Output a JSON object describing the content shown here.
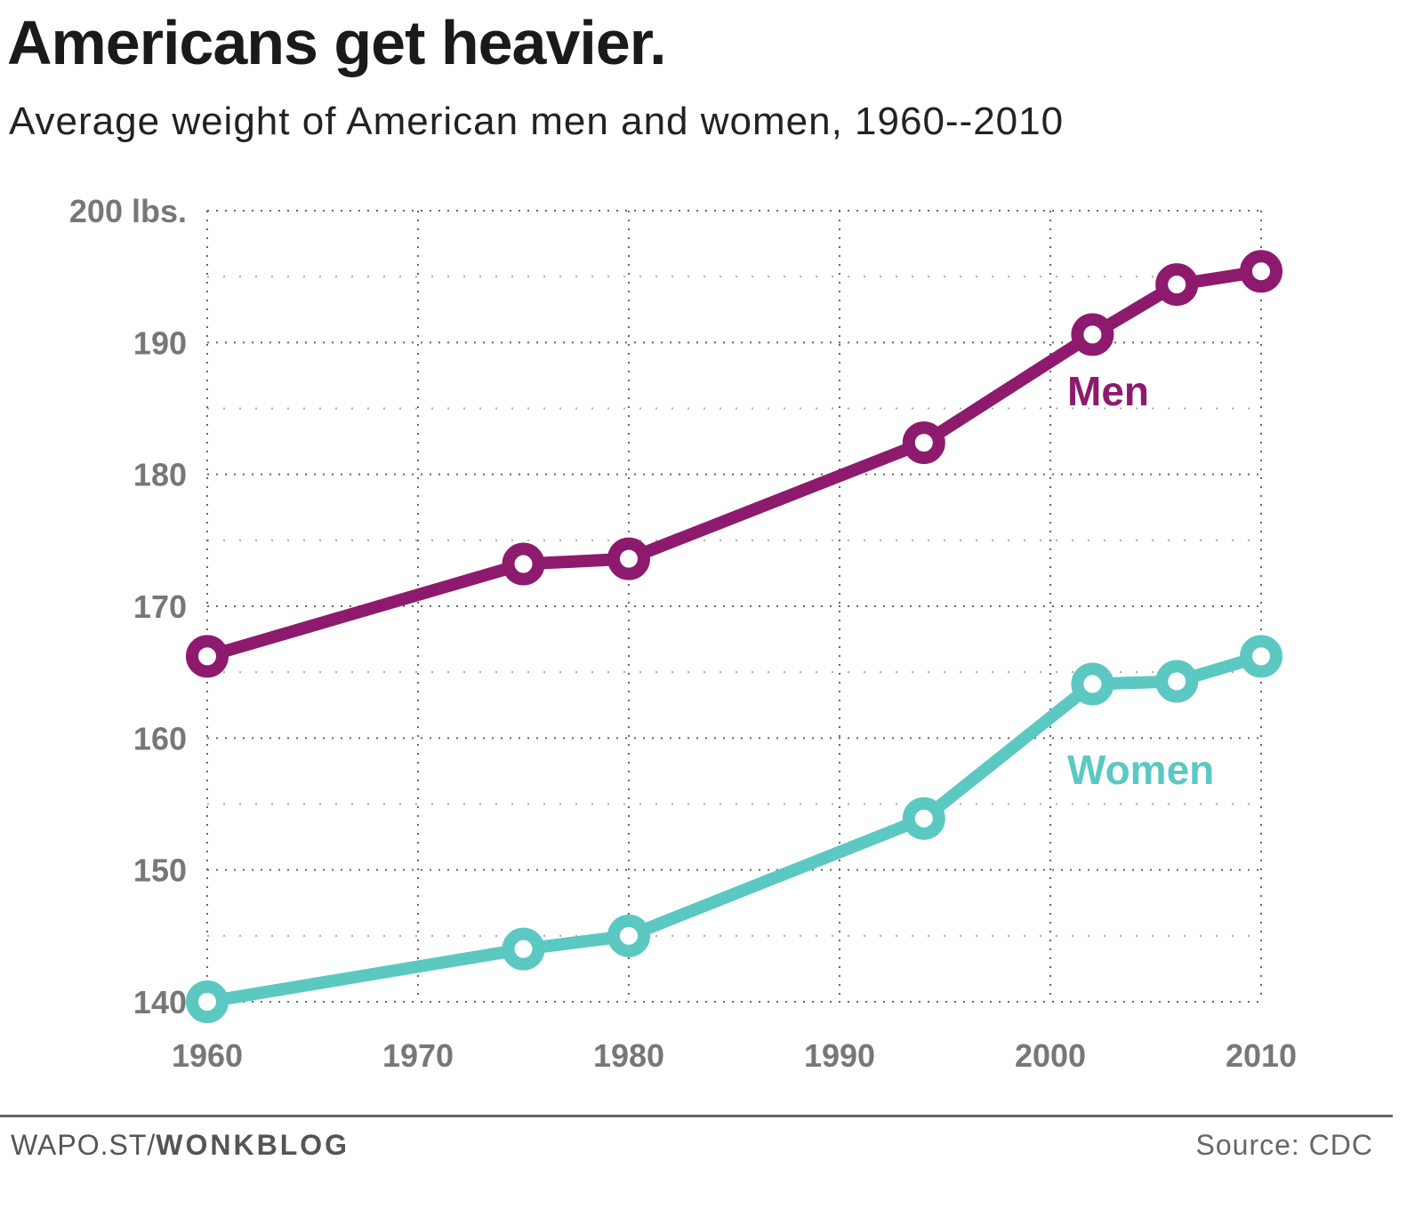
{
  "title": "Americans get heavier.",
  "subtitle": "Average weight of American men and women, 1960--2010",
  "footer": {
    "site_prefix": "WAPO.ST/",
    "site_bold": "WONKBLOG",
    "source": "Source: CDC"
  },
  "chart_data": {
    "type": "line",
    "title": "Americans get heavier.",
    "subtitle": "Average weight of American men and women, 1960--2010",
    "xlim": [
      1960,
      2010
    ],
    "ylim": [
      140,
      200
    ],
    "x_ticks": [
      1960,
      1970,
      1980,
      1990,
      2000,
      2010
    ],
    "x_tick_labels": [
      "1960",
      "1970",
      "1980",
      "1990",
      "2000",
      "2010"
    ],
    "y_ticks": [
      140,
      150,
      160,
      170,
      180,
      190,
      200
    ],
    "y_tick_labels": [
      "140",
      "150",
      "160",
      "170",
      "180",
      "190",
      "200 lbs."
    ],
    "grid": true,
    "series": [
      {
        "name": "Men",
        "color": "#8e1a6e",
        "x": [
          1960,
          1975,
          1980,
          1994,
          2002,
          2006,
          2010
        ],
        "y": [
          166.2,
          173.2,
          173.6,
          182.4,
          190.6,
          194.4,
          195.4
        ]
      },
      {
        "name": "Women",
        "color": "#5bc8c2",
        "x": [
          1960,
          1975,
          1980,
          1994,
          2002,
          2006,
          2010
        ],
        "y": [
          140.0,
          144.0,
          145.0,
          153.9,
          164.1,
          164.3,
          166.2
        ]
      }
    ]
  }
}
